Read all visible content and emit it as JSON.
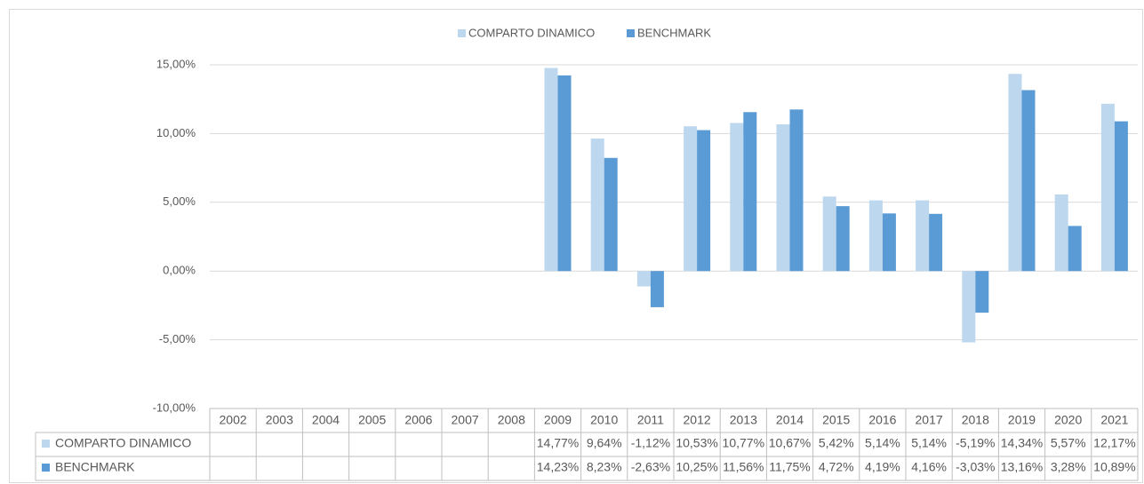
{
  "chart_data": {
    "type": "bar",
    "categories": [
      "2002",
      "2003",
      "2004",
      "2005",
      "2006",
      "2007",
      "2008",
      "2009",
      "2010",
      "2011",
      "2012",
      "2013",
      "2014",
      "2015",
      "2016",
      "2017",
      "2018",
      "2019",
      "2020",
      "2021"
    ],
    "series": [
      {
        "name": "COMPARTO DINAMICO",
        "color": "#bdd7ee",
        "values": [
          null,
          null,
          null,
          null,
          null,
          null,
          null,
          14.77,
          9.64,
          -1.12,
          10.53,
          10.77,
          10.67,
          5.42,
          5.14,
          5.14,
          -5.19,
          14.34,
          5.57,
          12.17
        ],
        "value_labels": [
          null,
          null,
          null,
          null,
          null,
          null,
          null,
          "14,77%",
          "9,64%",
          "-1,12%",
          "10,53%",
          "10,77%",
          "10,67%",
          "5,42%",
          "5,14%",
          "5,14%",
          "-5,19%",
          "14,34%",
          "5,57%",
          "12,17%"
        ]
      },
      {
        "name": "BENCHMARK",
        "color": "#5b9bd5",
        "values": [
          null,
          null,
          null,
          null,
          null,
          null,
          null,
          14.23,
          8.23,
          -2.63,
          10.25,
          11.56,
          11.75,
          4.72,
          4.19,
          4.16,
          -3.03,
          13.16,
          3.28,
          10.89
        ],
        "value_labels": [
          null,
          null,
          null,
          null,
          null,
          null,
          null,
          "14,23%",
          "8,23%",
          "-2,63%",
          "10,25%",
          "11,56%",
          "11,75%",
          "4,72%",
          "4,19%",
          "4,16%",
          "-3,03%",
          "13,16%",
          "3,28%",
          "10,89%"
        ]
      }
    ],
    "ylim": [
      -10,
      15
    ],
    "yticks": [
      {
        "value": -10,
        "label": "-10,00%"
      },
      {
        "value": -5,
        "label": "-5,00%"
      },
      {
        "value": 0,
        "label": "0,00%"
      },
      {
        "value": 5,
        "label": "5,00%"
      },
      {
        "value": 10,
        "label": "10,00%"
      },
      {
        "value": 15,
        "label": "15,00%"
      }
    ],
    "grid": true,
    "legend": "top"
  }
}
